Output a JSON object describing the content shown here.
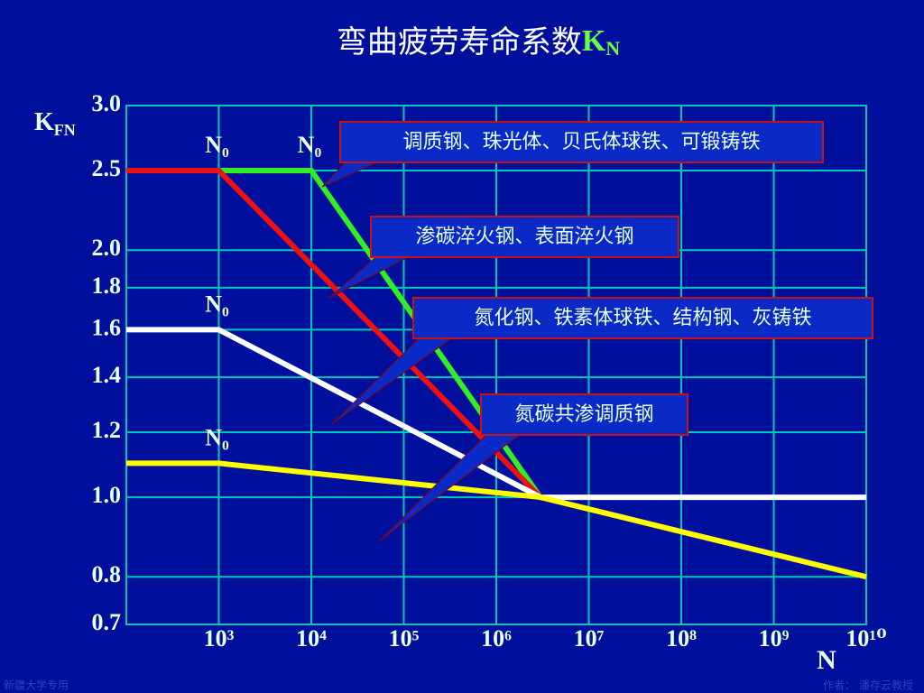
{
  "chart_data": {
    "type": "line",
    "title": "弯曲疲劳寿命系数",
    "title_symbol": "K",
    "title_symbol_sub": "N",
    "y_label": "K",
    "y_label_sub": "FN",
    "x_label": "N",
    "log_x": true,
    "log_y": true,
    "grid": true,
    "xlim": [
      100,
      10000000000
    ],
    "ylim": [
      0.7,
      3.0
    ],
    "xticks": [
      {
        "value": 1000,
        "label": "10³"
      },
      {
        "value": 10000,
        "label": "10⁴"
      },
      {
        "value": 100000,
        "label": "10⁵"
      },
      {
        "value": 1000000,
        "label": "10⁶"
      },
      {
        "value": 10000000,
        "label": "10⁷"
      },
      {
        "value": 100000000,
        "label": "10⁸"
      },
      {
        "value": 1000000000,
        "label": "10⁹"
      },
      {
        "value": 10000000000,
        "label": "10¹⁰"
      }
    ],
    "yticks": [
      0.7,
      0.8,
      {
        "value": 1,
        "label": "1.0"
      },
      1.2,
      1.4,
      1.6,
      1.8,
      {
        "value": 2,
        "label": "2.0"
      },
      2.5,
      {
        "value": 3,
        "label": "3.0"
      }
    ],
    "series": [
      {
        "name": "调质钢、珠光体、贝氏体球铁、可锻铸铁",
        "color": "#33ee22",
        "knee_label": "N₀",
        "x": [
          100,
          10000,
          3000000
        ],
        "values": [
          2.5,
          2.5,
          1.0
        ]
      },
      {
        "name": "渗碳淬火钢、表面淬火钢",
        "color": "#ee1111",
        "knee_label": "N₀",
        "x": [
          100,
          1000,
          3000000
        ],
        "values": [
          2.5,
          2.5,
          1.0
        ]
      },
      {
        "name": "氮化钢、铁素体球铁、结构钢、灰铸铁",
        "color": "#ffffff",
        "knee_label": "N₀",
        "x": [
          100,
          1000,
          3000000,
          10000000000
        ],
        "values": [
          1.6,
          1.6,
          1.0,
          1.0
        ]
      },
      {
        "name": "氮碳共渗调质钢",
        "color": "#ffff00",
        "knee_label": "N₀",
        "x": [
          100,
          1000,
          3000000,
          10000000000
        ],
        "values": [
          1.1,
          1.1,
          1.0,
          0.8
        ]
      }
    ]
  },
  "footer": {
    "left": "新疆大学专用",
    "right": "作者： 潘存云教授"
  }
}
